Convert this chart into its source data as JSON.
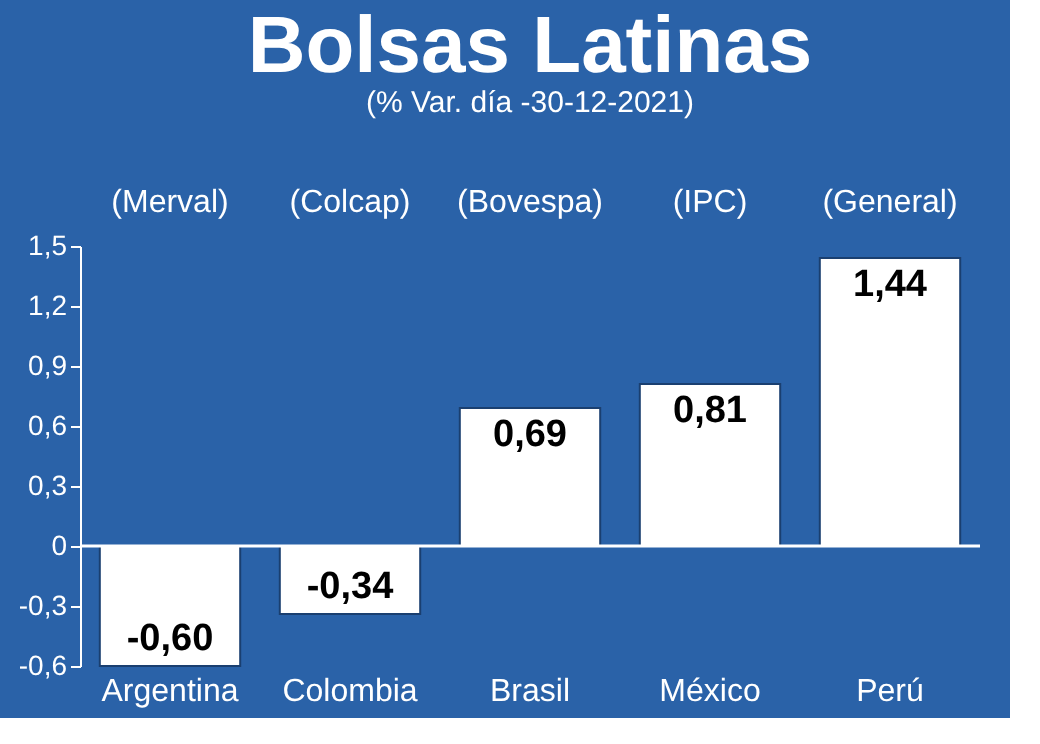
{
  "chart_data": {
    "type": "bar",
    "title": "Bolsas Latinas",
    "subtitle": "(% Var. día -30-12-2021)",
    "categories": [
      "Argentina",
      "Colombia",
      "Brasil",
      "México",
      "Perú"
    ],
    "values": [
      -0.6,
      -0.34,
      0.69,
      0.81,
      1.44
    ],
    "value_labels": [
      "-0,60",
      "-0,34",
      "0,69",
      "0,81",
      "1,44"
    ],
    "color": "#ffffff",
    "ylim": [
      -0.6,
      1.5
    ],
    "yticks": [
      {
        "value": 1.5,
        "label": "1,5"
      },
      {
        "value": 1.2,
        "label": "1,2"
      },
      {
        "value": 0.9,
        "label": "0,9"
      },
      {
        "value": 0.6,
        "label": "0,6"
      },
      {
        "value": 0.3,
        "label": "0,3"
      },
      {
        "value": 0,
        "label": "0"
      },
      {
        "value": -0.3,
        "label": "-0,3"
      },
      {
        "value": -0.6,
        "label": "-0,6"
      }
    ],
    "ref_lines": [
      {
        "axis": "y",
        "value": 0
      }
    ],
    "annotations": [
      "(Merval)",
      "(Colcap)",
      "(Bovespa)",
      "(IPC)",
      "(General)"
    ],
    "grid": false
  }
}
